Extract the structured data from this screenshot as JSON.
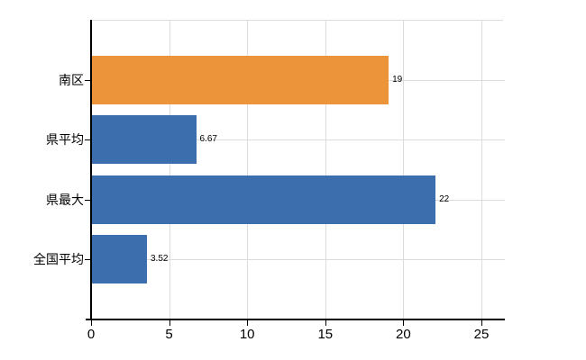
{
  "chart_data": {
    "type": "bar",
    "orientation": "horizontal",
    "title": "",
    "categories": [
      "南区",
      "県平均",
      "県最大",
      "全国平均"
    ],
    "values": [
      19,
      6.67,
      22,
      3.52
    ],
    "value_labels": [
      "19",
      "6.67",
      "22",
      "3.52"
    ],
    "bar_colors": [
      "#EB9439",
      "#3C6DAC",
      "#3C6DAC",
      "#3C6DAC"
    ],
    "x_ticks": [
      0,
      5,
      10,
      15,
      20,
      25
    ],
    "x_tick_labels": [
      "0",
      "5",
      "10",
      "15",
      "20",
      "25"
    ],
    "xlim": [
      0,
      26.5
    ],
    "grid": "on",
    "legend_position": "none",
    "colors": {
      "accent_orange": "#EB9439",
      "accent_blue": "#3C6DAC",
      "grid": "#DCDCDC",
      "axis": "#000000",
      "text": "#000000",
      "background": "#FFFFFF"
    }
  }
}
